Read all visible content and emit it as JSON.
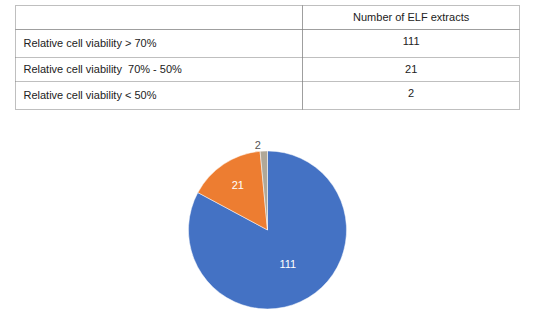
{
  "chart_data": [
    {
      "type": "table",
      "columns": [
        null,
        "Number of ELF extracts"
      ],
      "categories": [
        "Relative cell viability > 70%",
        "Relative cell viability  70% - 50%",
        "Relative cell viability < 50%"
      ],
      "values": [
        111,
        21,
        2
      ],
      "color": "#808080"
    },
    {
      "type": "pie",
      "values": [
        111,
        21,
        2
      ],
      "colors": [
        "#4472C4",
        "#ED7D31",
        "#B0A898"
      ],
      "data_labels": true
    }
  ]
}
